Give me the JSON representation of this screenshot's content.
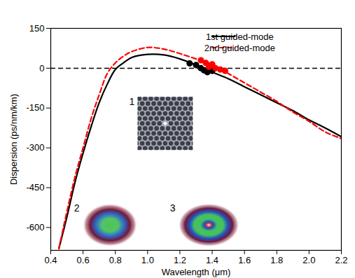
{
  "chart_data": {
    "type": "line",
    "x_label": "Wavelength (μm)",
    "y_label": "Dispersion (ps/nm/km)",
    "xlim": [
      0.4,
      2.2
    ],
    "xticks": [
      0.4,
      0.6,
      0.8,
      {
        "value": 1,
        "label": "1.0"
      },
      1.2,
      1.4,
      1.6,
      1.8,
      {
        "value": 2,
        "label": "2.0"
      },
      2.2
    ],
    "ylim": [
      -686,
      150
    ],
    "yticks": [
      -600,
      -450,
      -300,
      -150,
      0,
      150
    ],
    "legend": "top-right",
    "reference_lines": [
      {
        "y": 0,
        "color": "#000000",
        "line_style": "dashed"
      }
    ],
    "series": [
      {
        "name": "1st guided-mode",
        "color": "#000000",
        "line_style": "solid",
        "marker": "circle",
        "x": [
          0.45,
          0.5,
          0.55,
          0.6,
          0.65,
          0.7,
          0.75,
          0.8,
          0.85,
          0.9,
          1.0,
          1.1,
          1.2,
          1.3,
          1.4,
          1.5,
          1.6,
          1.7,
          1.8,
          1.9,
          2.0,
          2.1,
          2.2
        ],
        "values": [
          -680,
          -560,
          -430,
          -320,
          -220,
          -130,
          -60,
          -5,
          20,
          40,
          52,
          50,
          35,
          12,
          -15,
          -40,
          -70,
          -100,
          -130,
          -160,
          -195,
          -225,
          -258
        ],
        "measured": {
          "x": [
            1.26,
            1.3,
            1.33,
            1.35,
            1.37,
            1.4
          ],
          "values": [
            18,
            12,
            0,
            -8,
            -15,
            -10
          ]
        }
      },
      {
        "name": "2nd guided-mode",
        "color": "#ff0000",
        "line_style": "dashed",
        "marker": "circle",
        "x": [
          0.45,
          0.5,
          0.55,
          0.6,
          0.65,
          0.7,
          0.75,
          0.8,
          0.85,
          0.9,
          1.0,
          1.1,
          1.2,
          1.3,
          1.4,
          1.5,
          1.6,
          1.7,
          1.8,
          1.9,
          2.0,
          2.1,
          2.2
        ],
        "values": [
          -680,
          -540,
          -410,
          -300,
          -190,
          -100,
          -20,
          20,
          45,
          62,
          78,
          72,
          55,
          35,
          15,
          -20,
          -55,
          -90,
          -125,
          -165,
          -200,
          -240,
          -265
        ],
        "measured": {
          "x": [
            1.33,
            1.36,
            1.38,
            1.4,
            1.42,
            1.45,
            1.48
          ],
          "values": [
            30,
            20,
            5,
            15,
            0,
            -5,
            -10
          ]
        }
      }
    ],
    "insets": [
      {
        "label": "1"
      },
      {
        "label": "2"
      },
      {
        "label": "3"
      }
    ]
  }
}
